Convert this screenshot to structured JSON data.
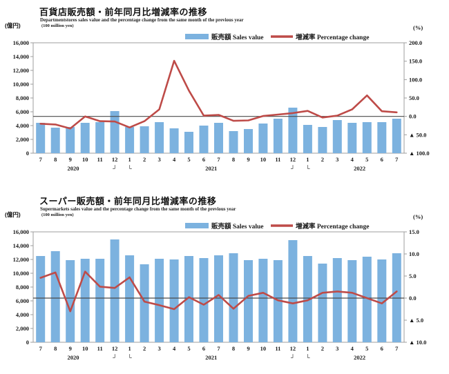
{
  "colors": {
    "bar": "#7CB2DF",
    "line": "#BE4B48",
    "zero_line": "#4a4a4a",
    "plot_border": "#9d9d9d",
    "text": "#1a1a1a"
  },
  "charts": [
    {
      "id": "department-stores",
      "title": "百貨店販売額・前年同月比増減率の推移",
      "subtitle": "Departmentstores sales value and the percentage change from the same month of the previous year",
      "unit_left": "(億円)",
      "unit_left_en": "(100 million yen)",
      "unit_right": "(%)",
      "legend": {
        "bar_label": "販売額 Sales value",
        "line_label": "増減率 Percentage change"
      },
      "chart_data": {
        "type": "combo_bar_line",
        "x_months": [
          "7",
          "8",
          "9",
          "10",
          "11",
          "12",
          "1",
          "2",
          "3",
          "4",
          "5",
          "6",
          "7",
          "8",
          "9",
          "10",
          "11",
          "12",
          "1",
          "2",
          "3",
          "4",
          "5",
          "6",
          "7"
        ],
        "x_years": [
          {
            "label": "2020",
            "index": 2.2
          },
          {
            "label": "┘",
            "index": 5
          },
          {
            "label": "└",
            "index": 6
          },
          {
            "label": "2021",
            "index": 11.5
          },
          {
            "label": "┘",
            "index": 17
          },
          {
            "label": "└",
            "index": 18
          },
          {
            "label": "2022",
            "index": 21.5
          }
        ],
        "series": [
          {
            "name": "販売額 Sales value",
            "type": "bar",
            "axis": "left",
            "unit": "100 million yen",
            "values": [
              4400,
              3700,
              3800,
              4400,
              4500,
              6100,
              3800,
              3900,
              4500,
              3600,
              3100,
              4000,
              4400,
              3200,
              3500,
              4300,
              5000,
              6600,
              4100,
              3800,
              4800,
              4400,
              4500,
              4500,
              5000
            ]
          },
          {
            "name": "増減率 Percentage change",
            "type": "line",
            "axis": "right",
            "unit": "%",
            "values": [
              -20,
              -22,
              -33,
              0,
              -13,
              -14,
              -30,
              -13,
              19,
              151,
              70,
              2,
              4,
              -12,
              -11,
              1,
              5,
              9,
              15,
              -3,
              2,
              19,
              57,
              14,
              11
            ]
          }
        ],
        "left_axis": {
          "min": 0,
          "max": 16000,
          "step": 2000
        },
        "right_axis": {
          "min": -100,
          "max": 200,
          "step": 50
        },
        "grid": false,
        "legend_position": "top"
      }
    },
    {
      "id": "supermarkets",
      "title": "スーパー販売額・前年同月比増減率の推移",
      "subtitle": "Supermarkets sales value and the percentage change from the same month of the previous year",
      "unit_left": "(億円)",
      "unit_left_en": "(100 million yen)",
      "unit_right": "(%)",
      "legend": {
        "bar_label": "販売額 Sales value",
        "line_label": "増減率 Percentage change"
      },
      "chart_data": {
        "type": "combo_bar_line",
        "x_months": [
          "7",
          "8",
          "9",
          "10",
          "11",
          "12",
          "1",
          "2",
          "3",
          "4",
          "5",
          "6",
          "7",
          "8",
          "9",
          "10",
          "11",
          "12",
          "1",
          "2",
          "3",
          "4",
          "5",
          "6",
          "7"
        ],
        "x_years": [
          {
            "label": "2020",
            "index": 2.2
          },
          {
            "label": "┘",
            "index": 5
          },
          {
            "label": "└",
            "index": 6
          },
          {
            "label": "2021",
            "index": 11.5
          },
          {
            "label": "┘",
            "index": 17
          },
          {
            "label": "└",
            "index": 18
          },
          {
            "label": "2022",
            "index": 21.5
          }
        ],
        "series": [
          {
            "name": "販売額 Sales value",
            "type": "bar",
            "axis": "left",
            "unit": "100 million yen",
            "values": [
              12500,
              13200,
              11900,
              12100,
              12100,
              14900,
              12600,
              11300,
              12100,
              12000,
              12500,
              12200,
              12600,
              12900,
              11900,
              12100,
              11900,
              14800,
              12500,
              11400,
              12200,
              11900,
              12400,
              12000,
              12900
            ]
          },
          {
            "name": "増減率 Percentage change",
            "type": "line",
            "axis": "right",
            "unit": "%",
            "values": [
              4.6,
              5.8,
              -3.0,
              6.0,
              2.6,
              2.3,
              4.7,
              -0.8,
              -1.6,
              -2.5,
              0.2,
              -1.5,
              0.7,
              -2.4,
              0.5,
              1.2,
              -0.5,
              -1.2,
              -0.5,
              1.2,
              1.5,
              1.2,
              0.0,
              -1.2,
              1.5
            ]
          }
        ],
        "left_axis": {
          "min": 0,
          "max": 16000,
          "step": 2000
        },
        "right_axis": {
          "min": -10,
          "max": 15,
          "step": 5
        },
        "grid": false,
        "legend_position": "top"
      }
    }
  ]
}
